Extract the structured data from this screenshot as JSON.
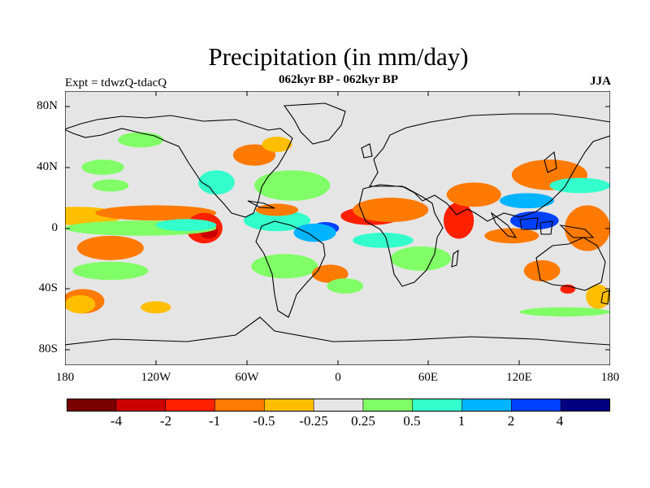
{
  "title": "Precipitation (in mm/day)",
  "subtitle": "062kyr BP - 062kyr BP",
  "experiment": "Expt = tdwzQ-tdacQ",
  "season": "JJA",
  "lat_ticks": [
    "80N",
    "40N",
    "0",
    "40S",
    "80S"
  ],
  "lon_ticks": [
    "180",
    "120W",
    "60W",
    "0",
    "60E",
    "120E",
    "180"
  ],
  "colorbar": {
    "labels": [
      "-4",
      "-2",
      "-1",
      "-0.5",
      "-0.25",
      "0.25",
      "0.5",
      "1",
      "2",
      "4"
    ],
    "colors": [
      "#7a0000",
      "#cc0000",
      "#ff2000",
      "#ff7a00",
      "#ffbf00",
      "#e5e5e5",
      "#80ff66",
      "#33ffcc",
      "#00b4ff",
      "#0040ff",
      "#000080"
    ]
  },
  "regions": [
    {
      "level": 4,
      "c": [
        -172,
        8
      ],
      "r": [
        30,
        6
      ]
    },
    {
      "level": 3,
      "c": [
        -120,
        10
      ],
      "r": [
        40,
        5
      ]
    },
    {
      "level": 2,
      "c": [
        -88,
        0
      ],
      "r": [
        12,
        10
      ]
    },
    {
      "level": 1,
      "c": [
        -85,
        -2
      ],
      "r": [
        6,
        5
      ]
    },
    {
      "level": 3,
      "c": [
        -150,
        -13
      ],
      "r": [
        22,
        8
      ]
    },
    {
      "level": 6,
      "c": [
        -130,
        0
      ],
      "r": [
        50,
        5
      ]
    },
    {
      "level": 7,
      "c": [
        -100,
        2
      ],
      "r": [
        20,
        4
      ]
    },
    {
      "level": 6,
      "c": [
        -150,
        -28
      ],
      "r": [
        25,
        6
      ]
    },
    {
      "level": 3,
      "c": [
        -168,
        -48
      ],
      "r": [
        14,
        8
      ]
    },
    {
      "level": 4,
      "c": [
        -120,
        -52
      ],
      "r": [
        10,
        4
      ]
    },
    {
      "level": 3,
      "c": [
        -55,
        48
      ],
      "r": [
        14,
        7
      ]
    },
    {
      "level": 4,
      "c": [
        -40,
        55
      ],
      "r": [
        10,
        5
      ]
    },
    {
      "level": 7,
      "c": [
        -80,
        30
      ],
      "r": [
        12,
        8
      ]
    },
    {
      "level": 6,
      "c": [
        -30,
        28
      ],
      "r": [
        25,
        10
      ]
    },
    {
      "level": 6,
      "c": [
        -155,
        40
      ],
      "r": [
        14,
        5
      ]
    },
    {
      "level": 7,
      "c": [
        -40,
        5
      ],
      "r": [
        22,
        7
      ]
    },
    {
      "level": 9,
      "c": [
        -8,
        0
      ],
      "r": [
        9,
        4
      ]
    },
    {
      "level": 8,
      "c": [
        -15,
        -3
      ],
      "r": [
        14,
        6
      ]
    },
    {
      "level": 3,
      "c": [
        -40,
        12
      ],
      "r": [
        14,
        4
      ]
    },
    {
      "level": 6,
      "c": [
        -35,
        -25
      ],
      "r": [
        22,
        8
      ]
    },
    {
      "level": 3,
      "c": [
        -5,
        -30
      ],
      "r": [
        12,
        6
      ]
    },
    {
      "level": 6,
      "c": [
        5,
        -38
      ],
      "r": [
        12,
        5
      ]
    },
    {
      "level": 2,
      "c": [
        22,
        8
      ],
      "r": [
        20,
        6
      ]
    },
    {
      "level": 3,
      "c": [
        35,
        12
      ],
      "r": [
        25,
        8
      ]
    },
    {
      "level": 7,
      "c": [
        30,
        -8
      ],
      "r": [
        20,
        5
      ]
    },
    {
      "level": 6,
      "c": [
        55,
        -20
      ],
      "r": [
        20,
        8
      ]
    },
    {
      "level": 2,
      "c": [
        80,
        5
      ],
      "r": [
        10,
        12
      ]
    },
    {
      "level": 3,
      "c": [
        90,
        22
      ],
      "r": [
        18,
        8
      ]
    },
    {
      "level": 9,
      "c": [
        130,
        5
      ],
      "r": [
        16,
        6
      ]
    },
    {
      "level": 8,
      "c": [
        125,
        18
      ],
      "r": [
        18,
        5
      ]
    },
    {
      "level": 3,
      "c": [
        115,
        -5
      ],
      "r": [
        18,
        5
      ]
    },
    {
      "level": 3,
      "c": [
        140,
        35
      ],
      "r": [
        25,
        10
      ]
    },
    {
      "level": 7,
      "c": [
        160,
        28
      ],
      "r": [
        20,
        5
      ]
    },
    {
      "level": 3,
      "c": [
        165,
        0
      ],
      "r": [
        15,
        15
      ]
    },
    {
      "level": 3,
      "c": [
        135,
        -28
      ],
      "r": [
        12,
        7
      ]
    },
    {
      "level": 2,
      "c": [
        152,
        -40
      ],
      "r": [
        5,
        3
      ]
    },
    {
      "level": 6,
      "c": [
        -130,
        58
      ],
      "r": [
        15,
        5
      ]
    },
    {
      "level": 4,
      "c": [
        -170,
        -50
      ],
      "r": [
        10,
        6
      ]
    },
    {
      "level": 4,
      "c": [
        172,
        -45
      ],
      "r": [
        8,
        8
      ]
    },
    {
      "level": 6,
      "c": [
        -150,
        28
      ],
      "r": [
        12,
        4
      ]
    },
    {
      "level": 6,
      "c": [
        150,
        -55
      ],
      "r": [
        30,
        3
      ]
    }
  ]
}
